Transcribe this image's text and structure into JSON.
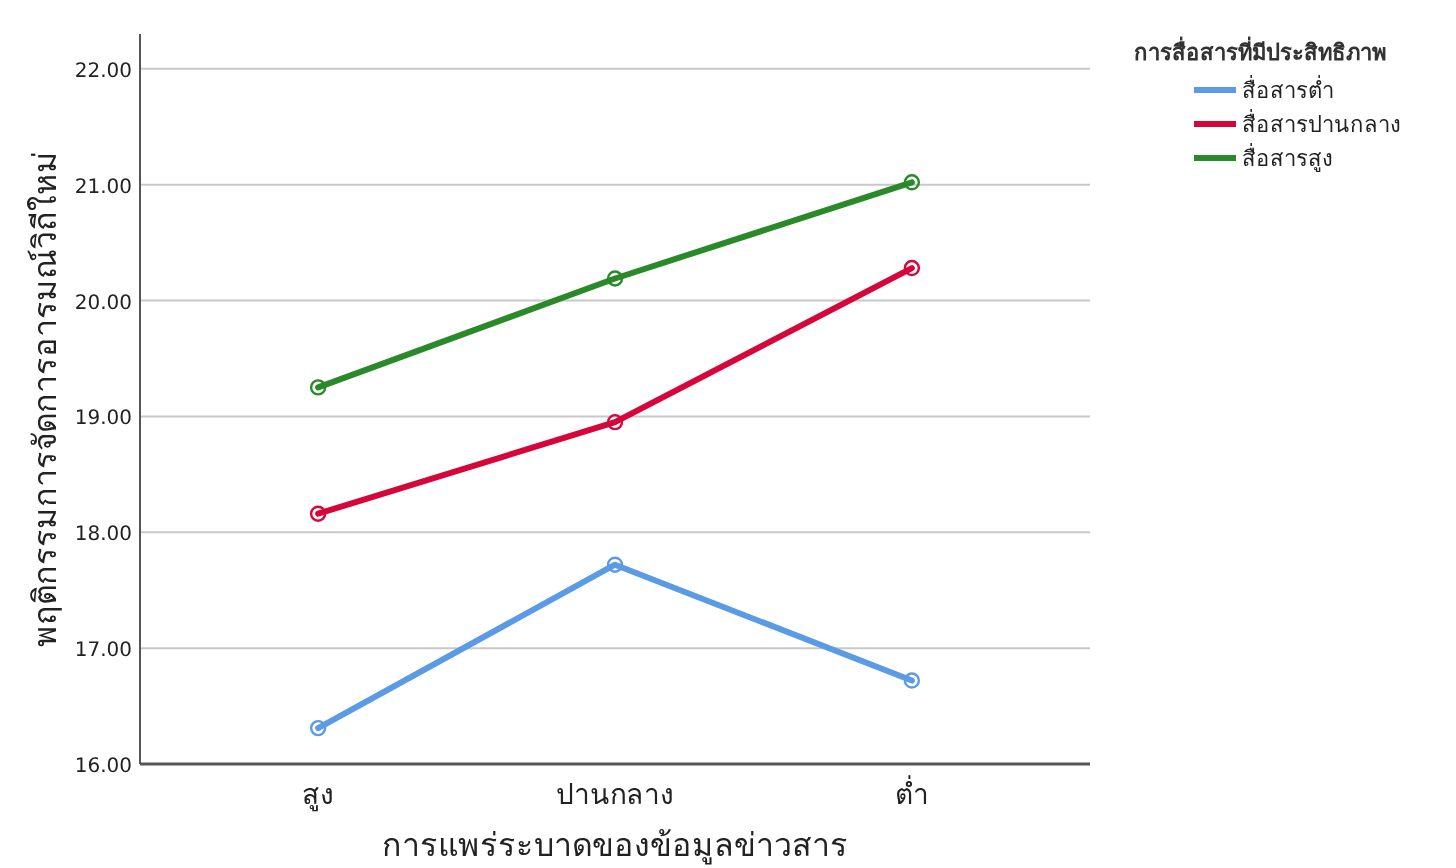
{
  "chart_data": {
    "type": "line",
    "xlabel": "การแพร่ระบาดของข้อมูลข่าวสาร",
    "ylabel": "พฤติกรรมการจัดการอารมณ์วิถีใหม่",
    "legend_title": "การสื่อสารที่มีประสิทธิภาพ",
    "categories": [
      "สูง",
      "ปานกลาง",
      "ต่ำ"
    ],
    "series": [
      {
        "name": "สื่อสารต่ำ",
        "color": "#5b9be6",
        "values": [
          16.31,
          17.72,
          16.72
        ]
      },
      {
        "name": "สื่อสารปานกลาง",
        "color": "#d6063a",
        "values": [
          18.16,
          18.95,
          20.28
        ]
      },
      {
        "name": "สื่อสารสูง",
        "color": "#2a8a2a",
        "values": [
          19.25,
          20.19,
          21.02
        ]
      }
    ],
    "ylim": [
      16,
      22.3
    ],
    "yticks": [
      {
        "value": 16,
        "label": "16.00"
      },
      {
        "value": 17,
        "label": "17.00"
      },
      {
        "value": 18,
        "label": "18.00"
      },
      {
        "value": 19,
        "label": "19.00"
      },
      {
        "value": 20,
        "label": "20.00"
      },
      {
        "value": 21,
        "label": "21.00"
      },
      {
        "value": 22,
        "label": "22.00"
      }
    ],
    "grid": "y",
    "legend": "right",
    "marker": "circle",
    "line_style": "solid"
  }
}
